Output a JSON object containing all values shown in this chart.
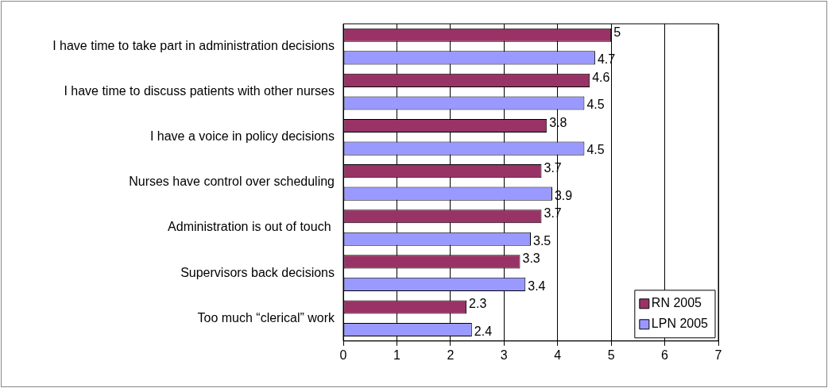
{
  "chart_data": {
    "type": "bar",
    "orientation": "horizontal",
    "categories": [
      "I have time to take part in administration decisions",
      "I have time to discuss patients with other nurses",
      "I have a voice in policy decisions",
      "Nurses have control over scheduling",
      "Administration is out of touch ",
      "Supervisors back decisions",
      "Too much “clerical” work"
    ],
    "series": [
      {
        "name": "RN 2005",
        "color": "#993366",
        "values": [
          5,
          4.6,
          3.8,
          3.7,
          3.7,
          3.3,
          2.3
        ]
      },
      {
        "name": "LPN 2005",
        "color": "#9999ff",
        "values": [
          4.7,
          4.5,
          4.5,
          3.9,
          3.5,
          3.4,
          2.4
        ]
      }
    ],
    "xlim": [
      0,
      7
    ],
    "xticks": [
      0,
      1,
      2,
      3,
      4,
      5,
      6,
      7
    ],
    "grid": "x",
    "legend": "bottom right",
    "data_labels": true
  }
}
